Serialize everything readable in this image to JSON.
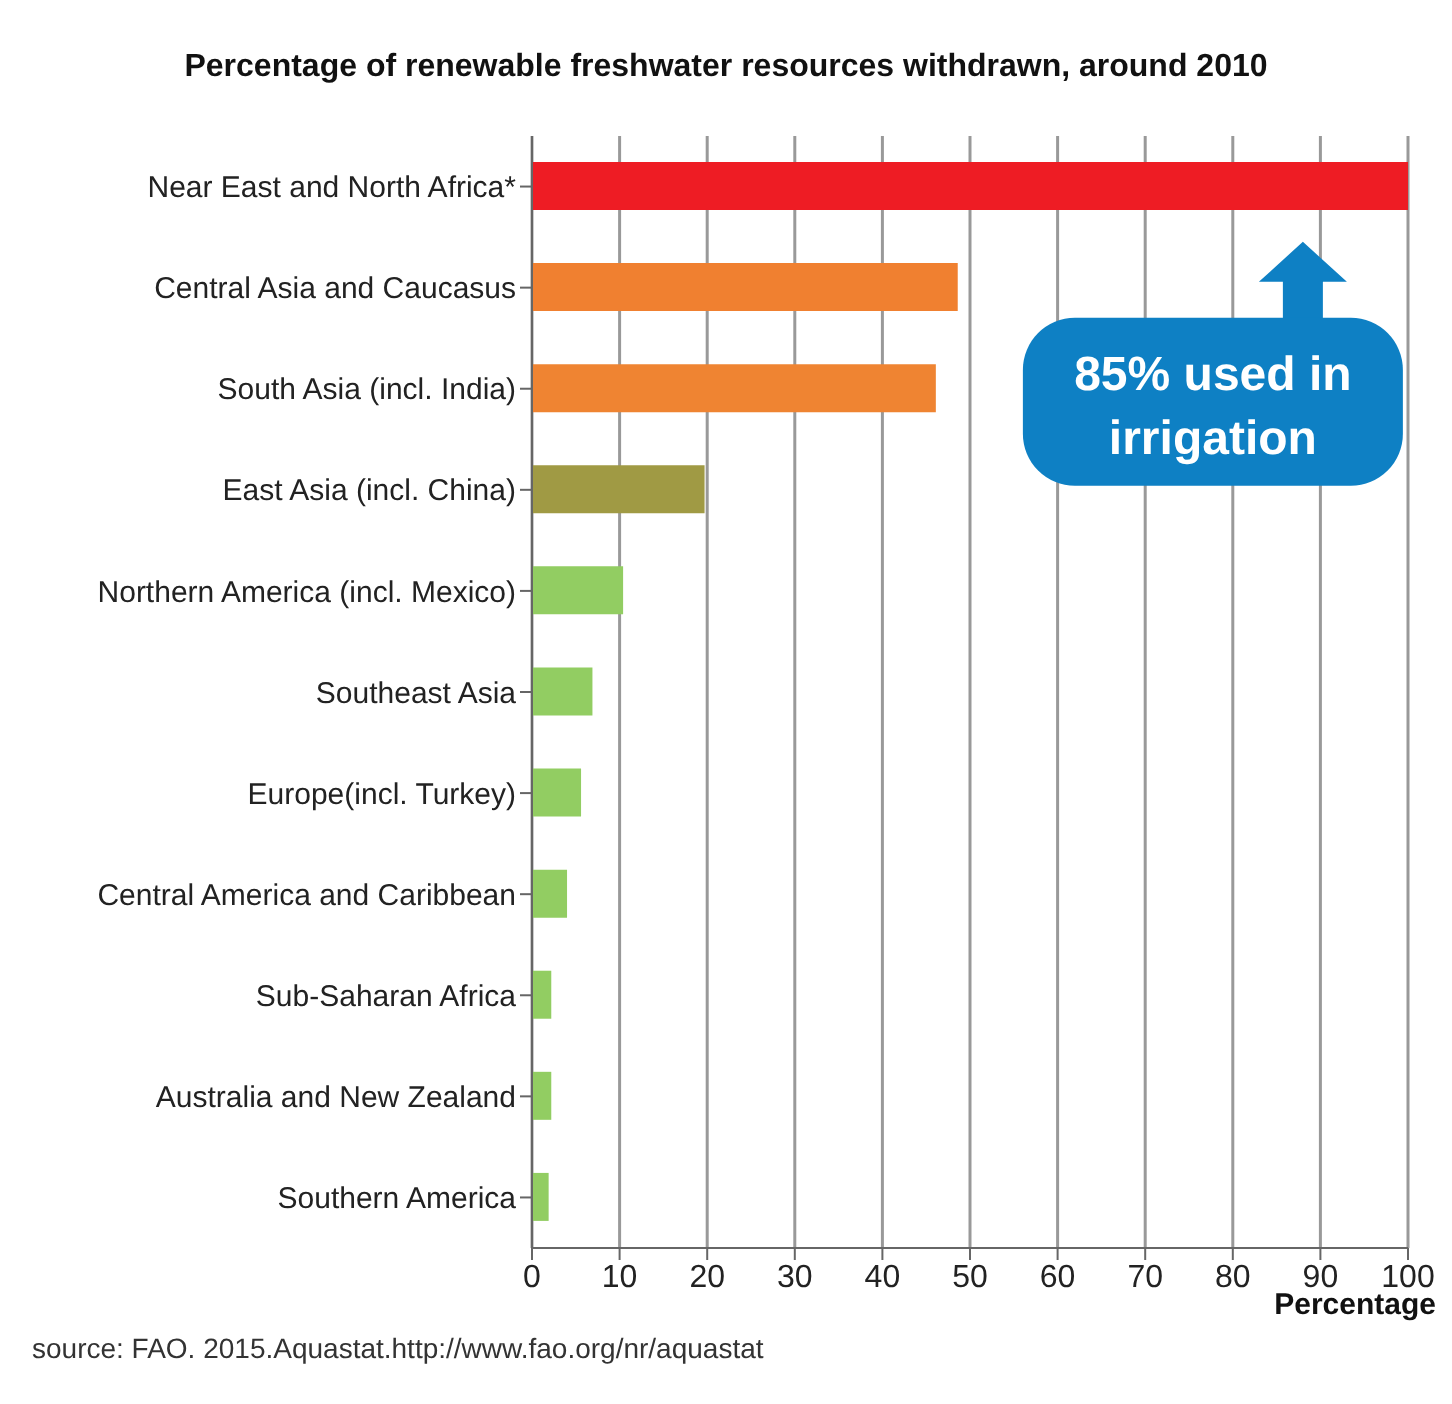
{
  "chart_data": {
    "type": "bar",
    "orientation": "horizontal",
    "title": "Percentage of renewable freshwater resources withdrawn, around 2010",
    "xlabel": "Percentage",
    "categories": [
      "Near East and North Africa*",
      "Central Asia and Caucasus",
      "South Asia (incl. India)",
      "East Asia (incl. China)",
      "Northern America (incl. Mexico)",
      "Southeast Asia",
      "Europe(incl. Turkey)",
      "Central America and Caribbean",
      "Sub-Saharan Africa",
      "Australia and New Zealand",
      "Southern America"
    ],
    "values": [
      100,
      48.6,
      46.1,
      19.7,
      10.4,
      6.9,
      5.6,
      4.0,
      2.2,
      2.2,
      1.9
    ],
    "colors": [
      "#ee1c24",
      "#f08030",
      "#ef8432",
      "#a09a44",
      "#92cd62",
      "#92cd62",
      "#92cd62",
      "#92cd62",
      "#92cd62",
      "#92cd62",
      "#92cd62"
    ],
    "xlim": [
      0,
      100
    ],
    "xticks": [
      0,
      10,
      20,
      30,
      40,
      50,
      60,
      70,
      80,
      90,
      100
    ],
    "grid": "x",
    "legend": false,
    "annotations": [
      "85% used in irrigation",
      "source: FAO. 2015.Aquastat.http://www.fao.org/nr/aquastat"
    ]
  }
}
